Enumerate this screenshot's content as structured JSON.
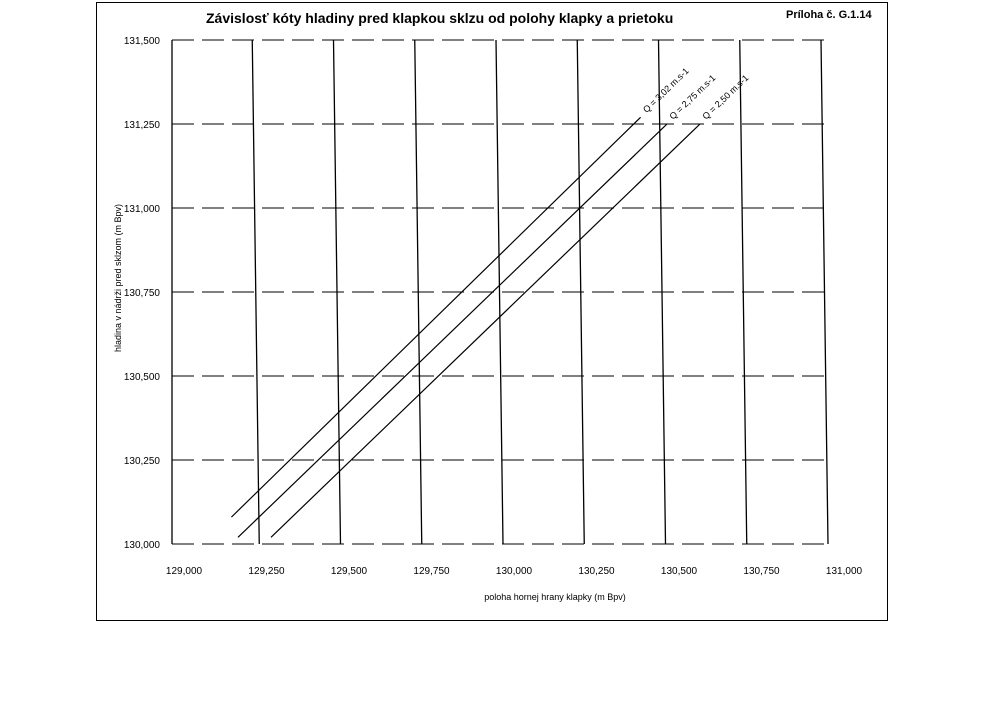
{
  "header": {
    "title": "Závislosť kóty hladiny pred klapkou sklzu od polohy klapky a prietoku",
    "reference": "Príloha č. G.1.14"
  },
  "chart_data": {
    "type": "line",
    "title": "Závislosť kóty hladiny pred klapkou sklzu od polohy klapky a prietoku",
    "xlabel": "poloha hornej hrany klapky (m Bpv)",
    "ylabel": "hladina v nádrži pred sklzom (m Bpv)",
    "xlim": [
      129.0,
      131.0
    ],
    "ylim": [
      130.0,
      131.5
    ],
    "x_ticks": [
      129.0,
      129.25,
      129.5,
      129.75,
      130.0,
      130.25,
      130.5,
      130.75,
      131.0
    ],
    "x_tick_labels": [
      "129,000",
      "129,250",
      "129,500",
      "129,750",
      "130,000",
      "130,250",
      "130,500",
      "130,750",
      "131,000"
    ],
    "y_ticks": [
      130.0,
      130.25,
      130.5,
      130.75,
      131.0,
      131.25,
      131.5
    ],
    "y_tick_labels": [
      "130,000",
      "130,250",
      "130,500",
      "130,750",
      "131,000",
      "131,250",
      "131,500"
    ],
    "grid": {
      "x": true,
      "y": true,
      "y_style": "dashed"
    },
    "series": [
      {
        "name": "Q = 3,02 m.s-1",
        "x": [
          129.18,
          130.42
        ],
        "y": [
          130.08,
          131.27
        ]
      },
      {
        "name": "Q = 2,75 m.s-1",
        "x": [
          129.2,
          130.5
        ],
        "y": [
          130.02,
          131.25
        ]
      },
      {
        "name": "Q = 2,50 m.s-1",
        "x": [
          129.3,
          130.6
        ],
        "y": [
          130.02,
          131.25
        ]
      }
    ]
  }
}
